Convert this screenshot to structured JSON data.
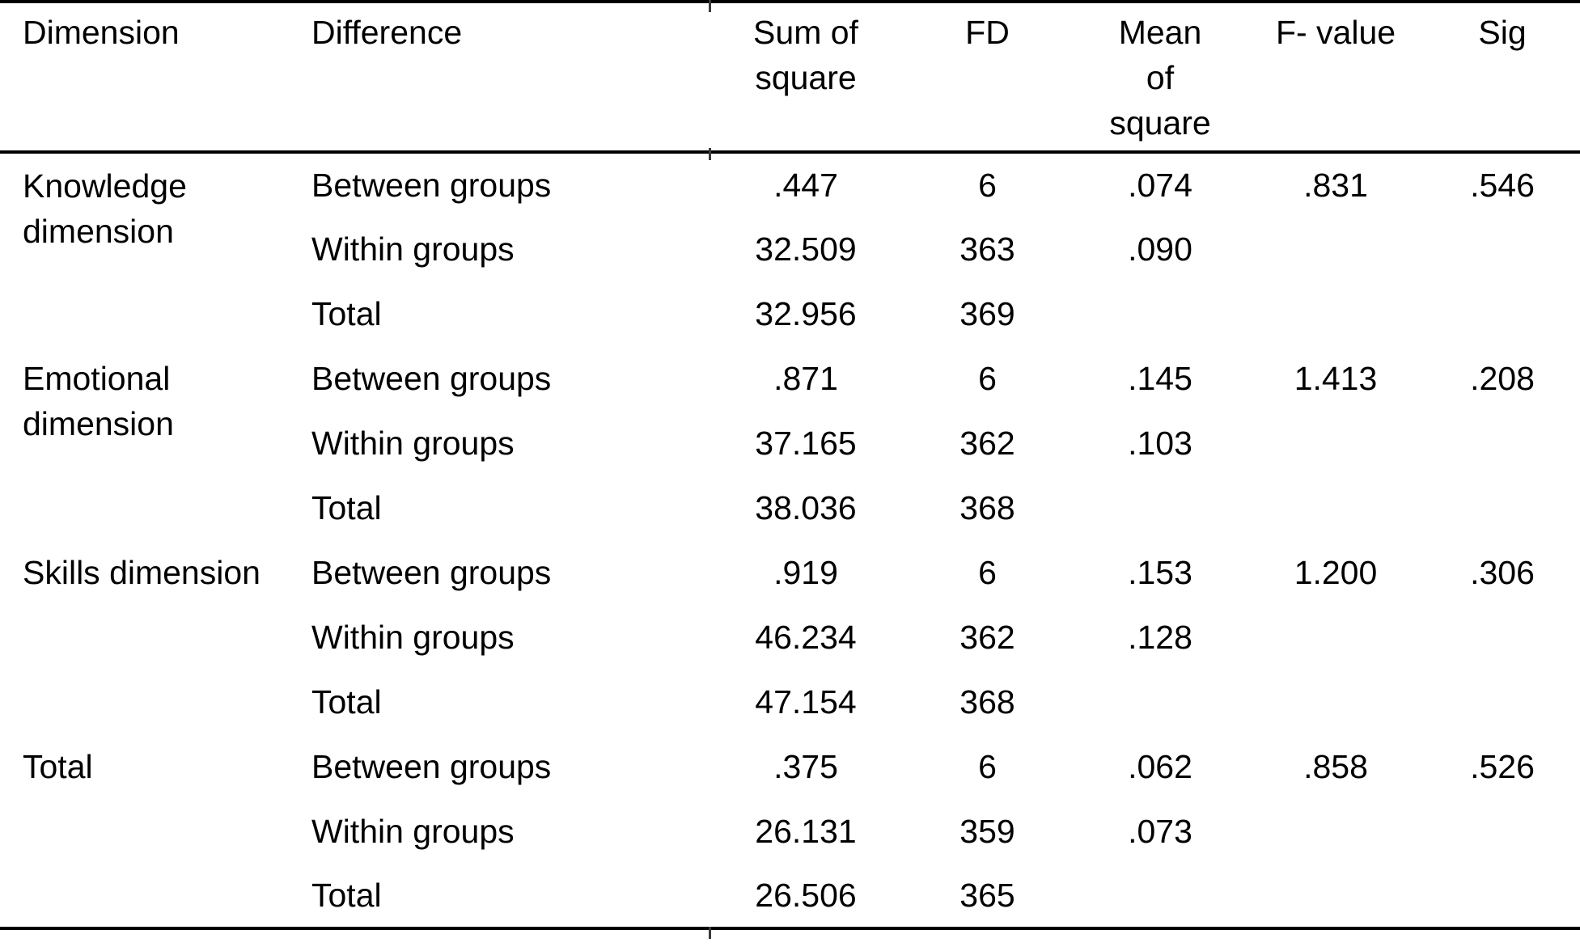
{
  "page": {
    "background": "#ffffff",
    "text_color": "#000000",
    "rule_color": "#000000"
  },
  "table": {
    "header": {
      "dimension": "Dimension",
      "difference": "Difference",
      "sum_of_square": "Sum of\nsquare",
      "fd": "FD",
      "mean_of_square": "Mean\nof\nsquare",
      "f_value": "F- value",
      "sig": "Sig"
    },
    "groups": [
      {
        "dimension": "Knowledge\ndimension",
        "rows": [
          {
            "difference": "Between groups",
            "sum_of_square": ".447",
            "fd": "6",
            "mean_of_square": ".074",
            "f_value": ".831",
            "sig": ".546"
          },
          {
            "difference": "Within groups",
            "sum_of_square": "32.509",
            "fd": "363",
            "mean_of_square": ".090",
            "f_value": "",
            "sig": ""
          },
          {
            "difference": "Total",
            "sum_of_square": "32.956",
            "fd": "369",
            "mean_of_square": "",
            "f_value": "",
            "sig": ""
          }
        ]
      },
      {
        "dimension": "Emotional\ndimension",
        "rows": [
          {
            "difference": "Between groups",
            "sum_of_square": ".871",
            "fd": "6",
            "mean_of_square": ".145",
            "f_value": "1.413",
            "sig": ".208"
          },
          {
            "difference": "Within groups",
            "sum_of_square": "37.165",
            "fd": "362",
            "mean_of_square": ".103",
            "f_value": "",
            "sig": ""
          },
          {
            "difference": "Total",
            "sum_of_square": "38.036",
            "fd": "368",
            "mean_of_square": "",
            "f_value": "",
            "sig": ""
          }
        ]
      },
      {
        "dimension": "Skills dimension",
        "rows": [
          {
            "difference": "Between groups",
            "sum_of_square": ".919",
            "fd": "6",
            "mean_of_square": ".153",
            "f_value": "1.200",
            "sig": ".306"
          },
          {
            "difference": "Within groups",
            "sum_of_square": "46.234",
            "fd": "362",
            "mean_of_square": ".128",
            "f_value": "",
            "sig": ""
          },
          {
            "difference": "Total",
            "sum_of_square": "47.154",
            "fd": "368",
            "mean_of_square": "",
            "f_value": "",
            "sig": ""
          }
        ]
      },
      {
        "dimension": "Total",
        "rows": [
          {
            "difference": "Between groups",
            "sum_of_square": ".375",
            "fd": "6",
            "mean_of_square": ".062",
            "f_value": ".858",
            "sig": ".526"
          },
          {
            "difference": "Within groups",
            "sum_of_square": "26.131",
            "fd": "359",
            "mean_of_square": ".073",
            "f_value": "",
            "sig": ""
          },
          {
            "difference": "Total",
            "sum_of_square": "26.506",
            "fd": "365",
            "mean_of_square": "",
            "f_value": "",
            "sig": ""
          }
        ]
      }
    ]
  }
}
